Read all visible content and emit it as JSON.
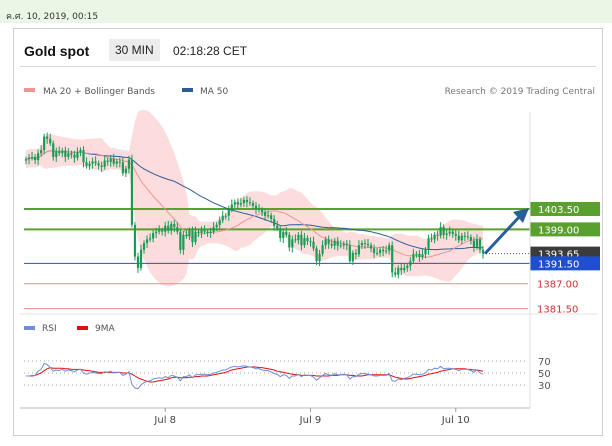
{
  "topbar": {
    "date_text": "ค.ศ. 10, 2019, 00:15"
  },
  "header": {
    "instrument": "Gold spot",
    "period": "30 MIN",
    "time": "02:18:28 CET"
  },
  "colors": {
    "candle": "#1a9a55",
    "ma20_band": "#f19393",
    "band_fill": "#fbd6d6",
    "ma50": "#2d5c9a",
    "resistance": "#5aa02c",
    "support": "#f08a8a",
    "pivot": "#1f4fd0",
    "arrow": "#2a5f9e",
    "rsi": "#6f8fd8",
    "rsi_ma": "#dd1111"
  },
  "chart_data": [
    {
      "type": "candlestick",
      "title": "",
      "legend": [
        {
          "name": "MA 20 + Bollinger Bands",
          "color": "#f19393"
        },
        {
          "name": "MA 50",
          "color": "#2d5c9a"
        }
      ],
      "attribution": "Research © 2019 Trading Central",
      "ylim": [
        1377,
        1425
      ],
      "x_ticks": [
        {
          "label": "Jul 8",
          "bar": 46
        },
        {
          "label": "Jul 9",
          "bar": 94
        },
        {
          "label": "Jul 10",
          "bar": 142
        }
      ],
      "levels": [
        {
          "label": "1403.50",
          "value": 1403.5,
          "kind": "resistance"
        },
        {
          "label": "1399.00",
          "value": 1399.0,
          "kind": "resistance"
        },
        {
          "label": "1393.65",
          "value": 1393.65,
          "kind": "last"
        },
        {
          "label": "1391.50",
          "value": 1391.5,
          "kind": "pivot"
        },
        {
          "label": "1387.00",
          "value": 1387.0,
          "kind": "support"
        },
        {
          "label": "1381.50",
          "value": 1381.5,
          "kind": "support"
        }
      ],
      "close": [
        1414.5,
        1414.8,
        1415.0,
        1414.3,
        1415.8,
        1416.5,
        1419.5,
        1419.0,
        1418.0,
        1415.0,
        1416.2,
        1415.8,
        1416.4,
        1415.0,
        1415.8,
        1415.5,
        1414.8,
        1416.0,
        1416.5,
        1413.8,
        1413.0,
        1413.5,
        1414.0,
        1413.6,
        1413.1,
        1412.8,
        1414.2,
        1413.9,
        1414.6,
        1413.5,
        1414.0,
        1413.8,
        1411.4,
        1412.4,
        1414.4,
        1400.0,
        1393.0,
        1390.5,
        1394.5,
        1396.0,
        1396.8,
        1397.0,
        1398.2,
        1398.5,
        1398.8,
        1398.5,
        1399.8,
        1398.7,
        1400.2,
        1399.5,
        1398.5,
        1394.5,
        1397.8,
        1397.5,
        1398.8,
        1396.2,
        1398.5,
        1398.2,
        1398.8,
        1398.5,
        1398.2,
        1398.5,
        1399.5,
        1400.0,
        1401.0,
        1402.0,
        1402.0,
        1403.4,
        1404.5,
        1405.0,
        1404.5,
        1404.8,
        1405.5,
        1405.0,
        1404.8,
        1404.2,
        1403.5,
        1403.3,
        1402.8,
        1402.0,
        1402.1,
        1401.3,
        1399.8,
        1399.2,
        1397.1,
        1398.4,
        1397.8,
        1395.0,
        1396.8,
        1396.6,
        1397.8,
        1395.5,
        1397.1,
        1396.4,
        1396.3,
        1394.8,
        1392.0,
        1393.6,
        1395.5,
        1396.8,
        1395.8,
        1395.4,
        1396.5,
        1395.4,
        1395.5,
        1395.8,
        1395.5,
        1392.0,
        1393.8,
        1393.5,
        1395.5,
        1396.0,
        1395.8,
        1395.5,
        1394.8,
        1393.8,
        1393.8,
        1394.5,
        1394.2,
        1394.3,
        1395.5,
        1389.5,
        1389.0,
        1390.5,
        1390.0,
        1390.5,
        1391.0,
        1392.0,
        1393.6,
        1393.6,
        1392.9,
        1393.5,
        1394.5,
        1397.0,
        1396.8,
        1397.8,
        1397.6,
        1399.5,
        1397.8,
        1398.1,
        1398.5,
        1398.0,
        1397.6,
        1396.6,
        1397.6,
        1397.5,
        1397.3,
        1396.5,
        1395.1,
        1396.8,
        1394.5,
        1393.65
      ],
      "rsi": [
        45,
        45,
        46,
        46,
        53,
        56,
        66,
        64,
        59,
        53,
        55,
        54,
        56,
        53,
        55,
        54,
        52,
        55,
        56,
        50,
        48,
        50,
        51,
        50,
        49,
        49,
        52,
        51,
        53,
        50,
        51,
        51,
        46,
        48,
        52,
        31,
        25,
        24,
        30,
        34,
        36,
        37,
        40,
        41,
        42,
        41,
        44,
        42,
        46,
        45,
        43,
        37,
        44,
        44,
        47,
        42,
        47,
        47,
        48,
        48,
        47,
        48,
        50,
        51,
        53,
        55,
        55,
        58,
        60,
        61,
        60,
        61,
        62,
        61,
        60,
        59,
        57,
        57,
        55,
        54,
        54,
        52,
        49,
        48,
        44,
        47,
        46,
        41,
        45,
        45,
        48,
        44,
        47,
        46,
        46,
        43,
        38,
        42,
        46,
        49,
        47,
        46,
        49,
        47,
        47,
        48,
        47,
        40,
        44,
        44,
        48,
        49,
        49,
        48,
        47,
        45,
        45,
        46,
        46,
        46,
        49,
        37,
        36,
        40,
        39,
        41,
        42,
        45,
        48,
        48,
        47,
        48,
        50,
        56,
        55,
        58,
        57,
        61,
        57,
        58,
        58,
        57,
        56,
        54,
        56,
        56,
        56,
        54,
        51,
        55,
        50,
        48
      ],
      "rsi_ma": [
        45,
        45,
        45,
        46,
        48,
        50,
        54,
        57,
        59,
        58,
        58,
        58,
        58,
        57,
        57,
        56,
        56,
        56,
        56,
        55,
        54,
        54,
        53,
        52,
        51,
        51,
        51,
        51,
        51,
        51,
        51,
        51,
        50,
        50,
        50,
        48,
        45,
        42,
        40,
        38,
        36,
        35,
        35,
        36,
        37,
        38,
        39,
        40,
        42,
        43,
        43,
        42,
        42,
        42,
        43,
        43,
        44,
        44,
        45,
        45,
        45,
        46,
        47,
        48,
        49,
        50,
        51,
        53,
        55,
        56,
        57,
        58,
        59,
        60,
        60,
        60,
        60,
        59,
        59,
        58,
        57,
        56,
        55,
        53,
        52,
        51,
        50,
        49,
        48,
        47,
        47,
        46,
        46,
        46,
        46,
        46,
        45,
        45,
        45,
        45,
        45,
        46,
        46,
        46,
        47,
        47,
        47,
        46,
        46,
        45,
        45,
        45,
        46,
        47,
        47,
        47,
        47,
        47,
        47,
        47,
        47,
        45,
        43,
        42,
        41,
        40,
        40,
        41,
        42,
        43,
        44,
        45,
        46,
        48,
        49,
        50,
        51,
        53,
        54,
        55,
        56,
        57,
        57,
        57,
        57,
        57,
        56,
        56,
        55,
        55,
        54,
        53
      ],
      "rsi_levels": [
        70,
        50,
        30
      ]
    }
  ]
}
